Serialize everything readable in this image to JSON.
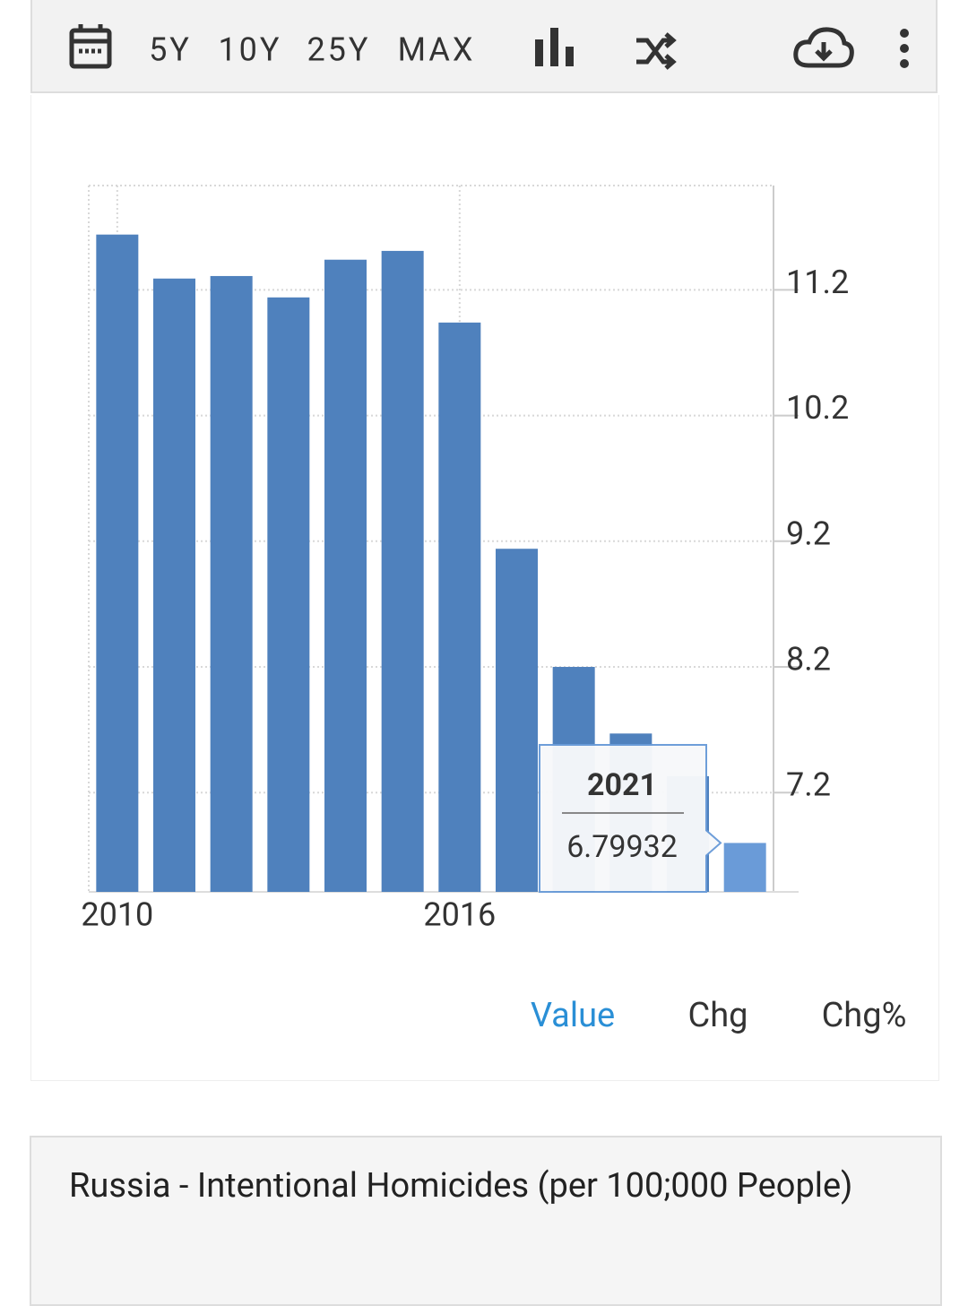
{
  "toolbar": {
    "ranges": [
      "5Y",
      "10Y",
      "25Y",
      "MAX"
    ]
  },
  "chart_data": {
    "type": "bar",
    "x": [
      2010,
      2011,
      2012,
      2013,
      2014,
      2015,
      2016,
      2017,
      2018,
      2019,
      2020,
      2021
    ],
    "values": [
      11.64,
      11.29,
      11.31,
      11.14,
      11.44,
      11.51,
      10.94,
      9.14,
      8.2,
      7.67,
      7.33,
      6.79932
    ],
    "color": "#4f81bd",
    "highlight_color": "#6a9bd8",
    "xlim": [
      2009.5,
      2021.5
    ],
    "xticks": [
      2010,
      2016
    ],
    "ylim": [
      6.41,
      12.03
    ],
    "yticks": [
      7.2,
      8.2,
      9.2,
      10.2,
      11.2
    ],
    "grid": true
  },
  "tabs": [
    "Value",
    "Chg",
    "Chg%"
  ],
  "title": "Russia - Intentional Homicides (per 100;000 People)"
}
